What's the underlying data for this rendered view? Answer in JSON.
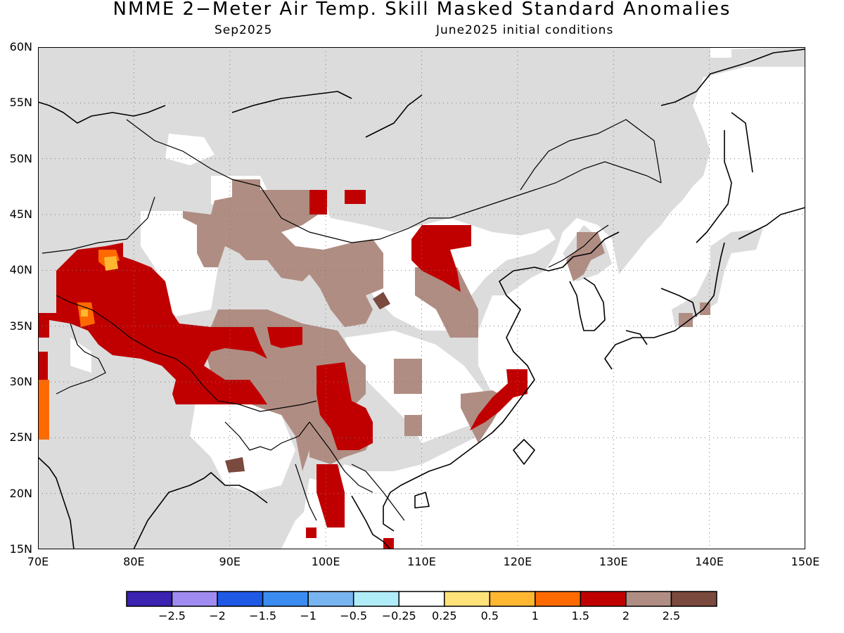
{
  "map": {
    "title": "NMME 2−Meter Air Temp. Skill Masked Standard Anomalies",
    "month": "Sep2025",
    "init": "June2025 initial conditions"
  },
  "extent": {
    "lon_min": 70,
    "lon_max": 150,
    "lat_min": 15,
    "lat_max": 60
  },
  "lat_ticks": [
    "60N",
    "55N",
    "50N",
    "45N",
    "40N",
    "35N",
    "30N",
    "25N",
    "20N",
    "15N"
  ],
  "lon_ticks": [
    "70E",
    "80E",
    "90E",
    "100E",
    "110E",
    "120E",
    "130E",
    "140E",
    "150E"
  ],
  "colors": {
    "masked": "#dcdcdc",
    "ocean": "#ffffff",
    "c_1_5": "#ff6a00",
    "c_2": "#c00000",
    "c_2_5": "#b08d83",
    "c_3": "#7a4a3e",
    "c_0_5": "#ffb732"
  },
  "colorbar": {
    "colors": [
      "#3b22b0",
      "#a08cf0",
      "#1e5ae6",
      "#3a8cf0",
      "#78b4f0",
      "#b0ecf8",
      "#ffffff",
      "#ffe27a",
      "#ffb732",
      "#ff6a00",
      "#c00000",
      "#b08d83",
      "#7a4a3e"
    ],
    "labels": [
      "−2.5",
      "−2",
      "−1.5",
      "−1",
      "−0.5",
      "−0.25",
      "0.25",
      "0.5",
      "1",
      "1.5",
      "2",
      "2.5"
    ]
  },
  "anomaly_regions": [
    {
      "name": "central-asia-warm",
      "level": "2"
    },
    {
      "name": "tibet-mongolia-brown",
      "level": "2.5"
    },
    {
      "name": "northeast-china-warm",
      "level": "2"
    },
    {
      "name": "east-china-warm",
      "level": "2"
    }
  ]
}
